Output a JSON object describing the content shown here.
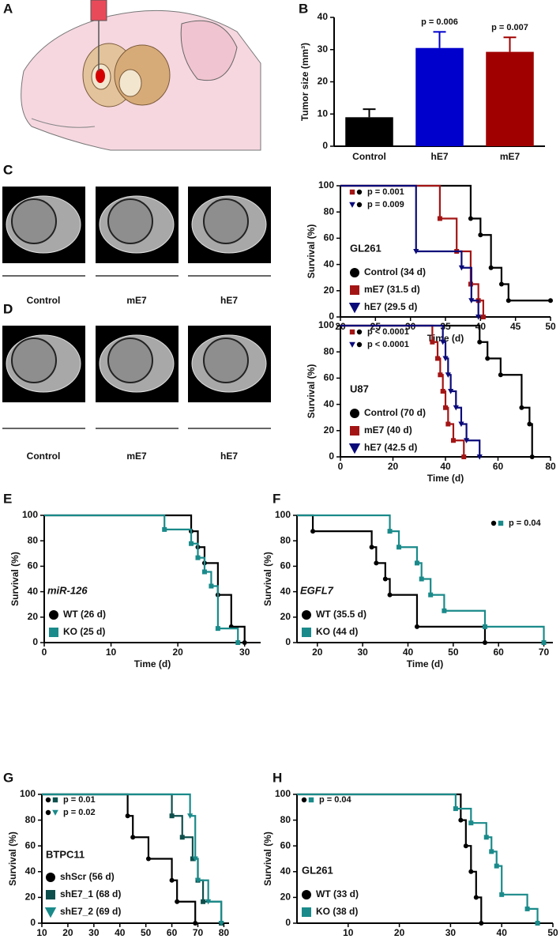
{
  "illustration": {
    "panel": "A"
  },
  "mri_panels": [
    {
      "panel": "C",
      "labels": [
        "Control",
        "mE7",
        "hE7"
      ]
    },
    {
      "panel": "D",
      "labels": [
        "Control",
        "mE7",
        "hE7"
      ]
    }
  ],
  "chart_data": [
    {
      "type": "bar",
      "panel": "B",
      "ylabel": "Tumor size (mm³)",
      "categories": [
        "Control",
        "hE7",
        "mE7"
      ],
      "values": [
        9,
        30.5,
        29.3
      ],
      "errors": [
        2.5,
        5,
        4.5
      ],
      "colors": [
        "#000000",
        "#0000cc",
        "#a00000"
      ],
      "annotations": [
        null,
        "p = 0.006",
        "p = 0.007"
      ],
      "ylim": [
        0,
        40
      ],
      "yticks": [
        0,
        10,
        20,
        30,
        40
      ]
    },
    {
      "type": "survival",
      "panel": "C",
      "xlabel": "Time (d)",
      "ylabel": "Survival (%)",
      "cell_line": "GL261",
      "cell_line_italic": false,
      "xlim": [
        20,
        50
      ],
      "xticks": [
        20,
        25,
        30,
        35,
        40,
        45,
        50
      ],
      "ylim": [
        0,
        100
      ],
      "yticks": [
        0,
        20,
        40,
        60,
        80,
        100
      ],
      "series": [
        {
          "name": "Control (34 d)",
          "color": "#000000",
          "marker": "circle",
          "x": [
            20,
            38.6,
            40,
            41.5,
            43,
            44,
            50
          ],
          "values": [
            100,
            75,
            62.5,
            37.5,
            25,
            12.5,
            12.5
          ]
        },
        {
          "name": "mE7 (31.5 d)",
          "color": "#a31515",
          "marker": "square",
          "x": [
            20,
            34.2,
            36.6,
            38.6,
            39.7,
            40.4
          ],
          "values": [
            100,
            75,
            50,
            25,
            12.5,
            0
          ]
        },
        {
          "name": "hE7 (29.5 d)",
          "color": "#0a0a7a",
          "marker": "triangle",
          "x": [
            20,
            30.8,
            37.3,
            38.7,
            39.7
          ],
          "values": [
            100,
            50,
            37.5,
            12.5,
            0
          ]
        }
      ],
      "p_values": [
        {
          "text": "p = 0.001",
          "series_ref": [
            1,
            0
          ]
        },
        {
          "text": "p = 0.009",
          "series_ref": [
            2,
            0
          ]
        }
      ]
    },
    {
      "type": "survival",
      "panel": "D",
      "xlabel": "Time (d)",
      "ylabel": "Survival (%)",
      "cell_line": "U87",
      "cell_line_italic": false,
      "xlim": [
        0,
        80
      ],
      "xticks": [
        0,
        20,
        40,
        60,
        80
      ],
      "ylim": [
        0,
        100
      ],
      "yticks": [
        0,
        20,
        40,
        60,
        80,
        100
      ],
      "series": [
        {
          "name": "Control (70 d)",
          "color": "#000000",
          "marker": "circle",
          "x": [
            0,
            53,
            56,
            61,
            69,
            72,
            73
          ],
          "values": [
            100,
            87.5,
            75,
            62.5,
            37.5,
            25,
            0
          ]
        },
        {
          "name": "mE7 (40 d)",
          "color": "#a31515",
          "marker": "square",
          "x": [
            0,
            35,
            37,
            38,
            39,
            40,
            41,
            43,
            47
          ],
          "values": [
            100,
            87.5,
            75,
            62.5,
            50,
            37.5,
            25,
            12.5,
            0
          ]
        },
        {
          "name": "hE7 (42.5 d)",
          "color": "#0a0a7a",
          "marker": "triangle",
          "x": [
            0,
            39,
            40,
            41,
            42,
            44,
            46,
            48,
            53
          ],
          "values": [
            100,
            87.5,
            75,
            62.5,
            50,
            37.5,
            25,
            12.5,
            0
          ]
        }
      ],
      "p_values": [
        {
          "text": "p < 0.0001",
          "series_ref": [
            1,
            0
          ]
        },
        {
          "text": "p < 0.0001",
          "series_ref": [
            2,
            0
          ]
        }
      ]
    },
    {
      "type": "survival",
      "panel": "E",
      "xlabel": "Time (d)",
      "ylabel": "Survival (%)",
      "cell_line": "miR-126",
      "cell_line_italic": true,
      "xlim": [
        0,
        32.4
      ],
      "xticks": [
        0,
        10,
        20,
        30
      ],
      "ylim": [
        0,
        100
      ],
      "yticks": [
        0,
        20,
        40,
        60,
        80,
        100
      ],
      "series": [
        {
          "name": "WT (26 d)",
          "color": "#000000",
          "marker": "circle",
          "x": [
            0,
            22,
            23,
            24,
            26,
            28,
            30
          ],
          "values": [
            100,
            87.5,
            75,
            62.5,
            37.5,
            12.5,
            0
          ]
        },
        {
          "name": "KO (25 d)",
          "color": "#1a8a8a",
          "marker": "square",
          "x": [
            0,
            18,
            22,
            23,
            24,
            25,
            26,
            29
          ],
          "values": [
            100,
            88.9,
            77.8,
            66.7,
            55.6,
            44.4,
            11.1,
            0
          ]
        }
      ],
      "p_values": []
    },
    {
      "type": "survival",
      "panel": "F",
      "xlabel": "Time (d)",
      "ylabel": "Survival (%)",
      "cell_line": "EGFL7",
      "cell_line_italic": true,
      "xlim": [
        15.5,
        72
      ],
      "xticks": [
        20,
        30,
        40,
        50,
        60,
        70
      ],
      "ylim": [
        0,
        100
      ],
      "yticks": [
        0,
        20,
        40,
        60,
        80,
        100
      ],
      "series": [
        {
          "name": "WT (35.5 d)",
          "color": "#000000",
          "marker": "circle",
          "x": [
            15.5,
            19,
            32,
            33,
            35,
            36,
            42,
            57
          ],
          "values": [
            100,
            87.5,
            75,
            62.5,
            50,
            37.5,
            12.5,
            0
          ]
        },
        {
          "name": "KO (44 d)",
          "color": "#1a8a8a",
          "marker": "square",
          "x": [
            15.5,
            36,
            38,
            42,
            43,
            45,
            48,
            57,
            70
          ],
          "values": [
            100,
            87.5,
            75,
            62.5,
            50,
            37.5,
            25,
            12.5,
            0
          ]
        }
      ],
      "p_values": [
        {
          "text": "p = 0.04",
          "series_ref": [
            0,
            1
          ]
        }
      ]
    },
    {
      "type": "survival",
      "panel": "G",
      "xlabel": "Time (d)",
      "ylabel": "Survival (%)",
      "cell_line": "BTPC11",
      "cell_line_italic": false,
      "xlim": [
        10,
        82
      ],
      "xticks": [
        10,
        20,
        30,
        40,
        50,
        60,
        70,
        80
      ],
      "ylim": [
        0,
        100
      ],
      "yticks": [
        0,
        20,
        40,
        60,
        80,
        100
      ],
      "series": [
        {
          "name": "shScr (56 d)",
          "color": "#000000",
          "marker": "circle",
          "x": [
            10,
            43,
            45,
            51,
            60,
            62,
            69
          ],
          "values": [
            100,
            83.3,
            66.7,
            50,
            33.3,
            16.7,
            0
          ]
        },
        {
          "name": "shE7_1 (68 d)",
          "color": "#0d4f4c",
          "marker": "square",
          "x": [
            10,
            60,
            64,
            68,
            70,
            72,
            79
          ],
          "values": [
            100,
            83.3,
            66.7,
            50,
            33.3,
            16.7,
            0
          ]
        },
        {
          "name": "shE7_2 (69 d)",
          "color": "#1a8a8a",
          "marker": "triangle",
          "x": [
            10,
            67,
            69,
            70,
            74,
            79
          ],
          "values": [
            100,
            83.3,
            50,
            33.3,
            16.7,
            0
          ]
        }
      ],
      "p_values": [
        {
          "text": "p = 0.01",
          "series_ref": [
            0,
            1
          ]
        },
        {
          "text": "p = 0.02",
          "series_ref": [
            0,
            2
          ]
        }
      ]
    },
    {
      "type": "survival",
      "panel": "H",
      "xlabel": "Time (d)",
      "ylabel": "Survival (%)",
      "cell_line": "GL261",
      "cell_line_italic": false,
      "xlim": [
        0,
        50
      ],
      "xticks": [
        10,
        20,
        30,
        40,
        50
      ],
      "ylim": [
        0,
        100
      ],
      "yticks": [
        0,
        20,
        40,
        60,
        80,
        100
      ],
      "series": [
        {
          "name": "WT (33 d)",
          "color": "#000000",
          "marker": "circle",
          "x": [
            0,
            32,
            33,
            34,
            35,
            36
          ],
          "values": [
            100,
            80,
            60,
            40,
            20,
            0
          ]
        },
        {
          "name": "KO (38 d)",
          "color": "#1a8a8a",
          "marker": "square",
          "x": [
            0,
            31,
            34,
            37,
            38,
            39,
            40,
            45,
            47
          ],
          "values": [
            100,
            88.9,
            77.8,
            66.7,
            55.6,
            44.4,
            22.2,
            11.1,
            0
          ]
        }
      ],
      "p_values": [
        {
          "text": "p = 0.04",
          "series_ref": [
            0,
            1
          ]
        }
      ]
    }
  ]
}
